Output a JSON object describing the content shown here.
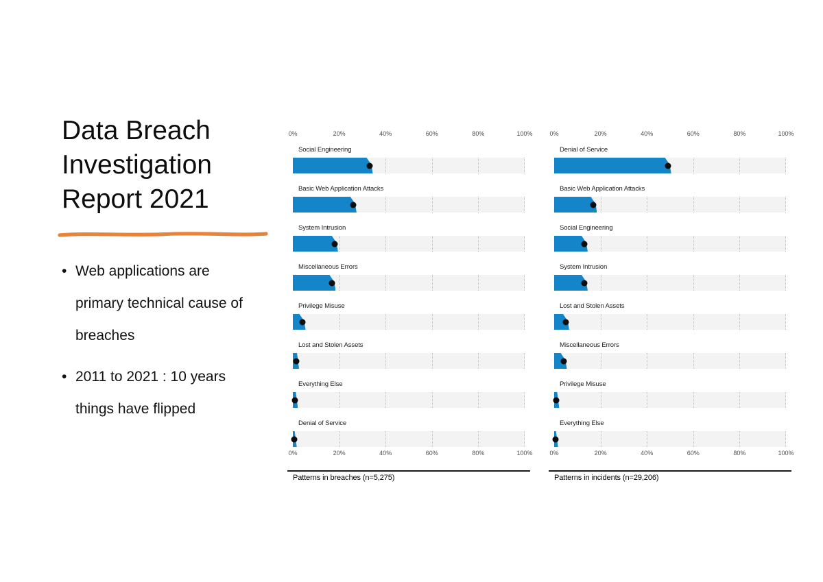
{
  "slide": {
    "title": "Data Breach\nInvestigation\nReport 2021",
    "bullet_marker": "•",
    "bullets": [
      {
        "text": "Web applications are\nprimary technical cause of\nbreaches"
      },
      {
        "text": "2011 to 2021 : 10 years\nthings have flipped"
      }
    ]
  },
  "colors": {
    "accent": "#e8833a",
    "bar": "#1485c9",
    "dot": "#0d0d0d",
    "track": "#f3f3f3",
    "grid": "#bdbdbd",
    "axis_text": "#4d4d4d"
  },
  "chart_data": [
    {
      "type": "bar",
      "orientation": "horizontal",
      "caption": "Patterns in breaches (n=5,275)",
      "xlim": [
        0,
        100
      ],
      "ticks": [
        "0%",
        "20%",
        "40%",
        "60%",
        "80%",
        "100%"
      ],
      "grid": "dotted-vertical",
      "legend": "none",
      "categories": [
        "Social Engineering",
        "Basic Web Application Attacks",
        "System Intrusion",
        "Miscellaneous Errors",
        "Privilege Misuse",
        "Lost and Stolen Assets",
        "Everything Else",
        "Denial of Service"
      ],
      "values": [
        33,
        26,
        18,
        17,
        4,
        1.5,
        1,
        0.5
      ]
    },
    {
      "type": "bar",
      "orientation": "horizontal",
      "caption": "Patterns in incidents (n=29,206)",
      "xlim": [
        0,
        100
      ],
      "ticks": [
        "0%",
        "20%",
        "40%",
        "60%",
        "80%",
        "100%"
      ],
      "grid": "dotted-vertical",
      "legend": "none",
      "categories": [
        "Denial of Service",
        "Basic Web Application Attacks",
        "Social Engineering",
        "System Intrusion",
        "Lost and Stolen Assets",
        "Miscellaneous Errors",
        "Privilege Misuse",
        "Everything Else"
      ],
      "values": [
        49,
        17,
        13,
        13,
        5,
        4,
        1,
        0.5
      ]
    }
  ]
}
